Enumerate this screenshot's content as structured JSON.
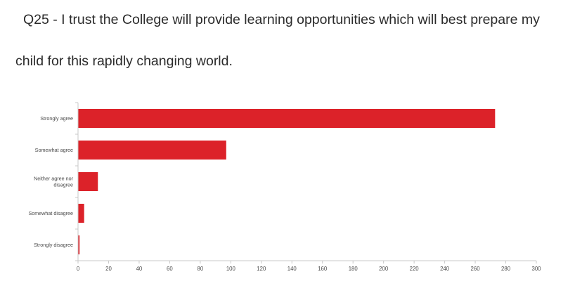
{
  "title_lines": [
    "Q25 - I trust the College will provide learning opportunities which will best prepare my",
    "child for this rapidly changing world."
  ],
  "chart_data": {
    "type": "bar",
    "orientation": "horizontal",
    "categories": [
      [
        "Strongly agree"
      ],
      [
        "Somewhat agree"
      ],
      [
        "Neither agree nor",
        "disagree"
      ],
      [
        "Somewhat disagree"
      ],
      [
        "Strongly disagree"
      ]
    ],
    "values": [
      273,
      97,
      13,
      4,
      1
    ],
    "xlim": [
      0,
      300
    ],
    "xticks": [
      0,
      20,
      40,
      60,
      80,
      100,
      120,
      140,
      160,
      180,
      200,
      220,
      240,
      260,
      280,
      300
    ],
    "grid": false,
    "legend": "none",
    "bar_color": "#dc2229",
    "axis_color": "#c8c8c8"
  }
}
